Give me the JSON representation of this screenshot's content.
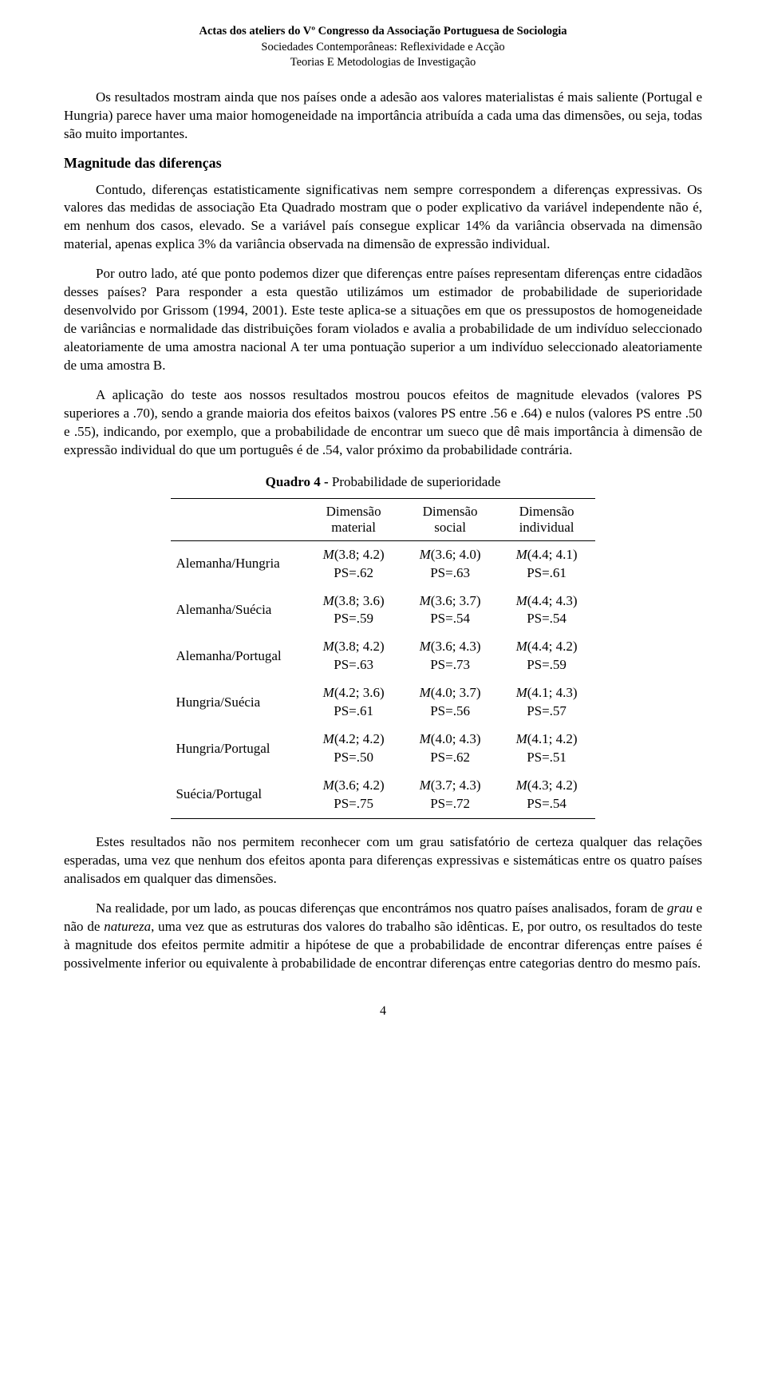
{
  "header": {
    "line1": "Actas dos ateliers do Vº Congresso da Associação Portuguesa de Sociologia",
    "line2": "Sociedades Contemporâneas: Reflexividade e Acção",
    "line3": "Teorias E Metodologias de Investigação"
  },
  "paragraphs": {
    "p1": "Os resultados mostram ainda que nos países onde a adesão aos valores materialistas é mais saliente (Portugal e Hungria) parece haver uma maior homogeneidade na importância atribuída a cada uma das dimensões, ou seja, todas são muito importantes.",
    "section": "Magnitude das diferenças",
    "p2": "Contudo, diferenças estatisticamente significativas nem sempre correspondem a diferenças expressivas. Os valores das medidas de associação Eta Quadrado mostram que o poder explicativo da variável independente não é, em nenhum dos casos, elevado. Se a variável país consegue explicar 14% da variância observada na dimensão material, apenas explica 3% da variância observada na dimensão de expressão individual.",
    "p3": "Por outro lado, até que ponto podemos dizer que diferenças entre países representam diferenças entre cidadãos desses países? Para responder a esta questão utilizámos um estimador de probabilidade de superioridade desenvolvido por Grissom (1994, 2001). Este teste aplica-se a situações em que os pressupostos de homogeneidade de variâncias e normalidade das distribuições foram violados e avalia a probabilidade de um indivíduo seleccionado aleatoriamente de uma amostra nacional A ter uma pontuação superior a um indivíduo seleccionado aleatoriamente de uma amostra B.",
    "p4": "A aplicação do teste aos nossos resultados mostrou poucos efeitos de magnitude elevados (valores PS superiores a .70), sendo a grande maioria dos efeitos baixos (valores PS entre .56 e .64) e nulos (valores PS entre .50 e .55), indicando, por exemplo, que a probabilidade de encontrar um sueco que dê mais importância à dimensão de expressão individual do que um português é de .54, valor próximo da probabilidade contrária.",
    "p5a": "Estes resultados não nos permitem reconhecer com um grau satisfatório de certeza qualquer das relações esperadas, uma vez que nenhum dos efeitos aponta para diferenças expressivas e sistemáticas entre os quatro países analisados em qualquer das dimensões.",
    "p5b_pre": "Na realidade, por um lado, as poucas diferenças que encontrámos nos quatro países analisados, foram de ",
    "p5b_it1": "grau",
    "p5b_mid": " e não de ",
    "p5b_it2": "natureza",
    "p5b_post": ", uma vez que as estruturas dos valores do trabalho são idênticas. E, por outro, os resultados do teste à magnitude dos efeitos permite admitir a hipótese de que a probabilidade de encontrar diferenças entre países é possivelmente inferior ou equivalente à probabilidade de encontrar diferenças entre categorias dentro do mesmo país."
  },
  "table": {
    "title_bold": "Quadro 4 - ",
    "title_rest": "Probabilidade de superioridade",
    "columns": [
      "",
      "Dimensão material",
      "Dimensão social",
      "Dimensão individual"
    ],
    "col_head_l1": [
      "Dimensão",
      "Dimensão",
      "Dimensão"
    ],
    "col_head_l2": [
      "material",
      "social",
      "individual"
    ],
    "rows": [
      {
        "label": "Alemanha/Hungria",
        "m": [
          "M(3.8; 4.2)",
          "M(3.6; 4.0)",
          "M(4.4; 4.1)"
        ],
        "ps": [
          "PS=.62",
          "PS=.63",
          "PS=.61"
        ]
      },
      {
        "label": "Alemanha/Suécia",
        "m": [
          "M(3.8; 3.6)",
          "M(3.6; 3.7)",
          "M(4.4; 4.3)"
        ],
        "ps": [
          "PS=.59",
          "PS=.54",
          "PS=.54"
        ]
      },
      {
        "label": "Alemanha/Portugal",
        "m": [
          "M(3.8; 4.2)",
          "M(3.6; 4.3)",
          "M(4.4; 4.2)"
        ],
        "ps": [
          "PS=.63",
          "PS=.73",
          "PS=.59"
        ]
      },
      {
        "label": "Hungria/Suécia",
        "m": [
          "M(4.2; 3.6)",
          "M(4.0; 3.7)",
          "M(4.1; 4.3)"
        ],
        "ps": [
          "PS=.61",
          "PS=.56",
          "PS=.57"
        ]
      },
      {
        "label": "Hungria/Portugal",
        "m": [
          "M(4.2; 4.2)",
          "M(4.0; 4.3)",
          "M(4.1; 4.2)"
        ],
        "ps": [
          "PS=.50",
          "PS=.62",
          "PS=.51"
        ]
      },
      {
        "label": "Suécia/Portugal",
        "m": [
          "M(3.6; 4.2)",
          "M(3.7; 4.3)",
          "M(4.3; 4.2)"
        ],
        "ps": [
          "PS=.75",
          "PS=.72",
          "PS=.54"
        ]
      }
    ]
  },
  "pagenum": "4"
}
